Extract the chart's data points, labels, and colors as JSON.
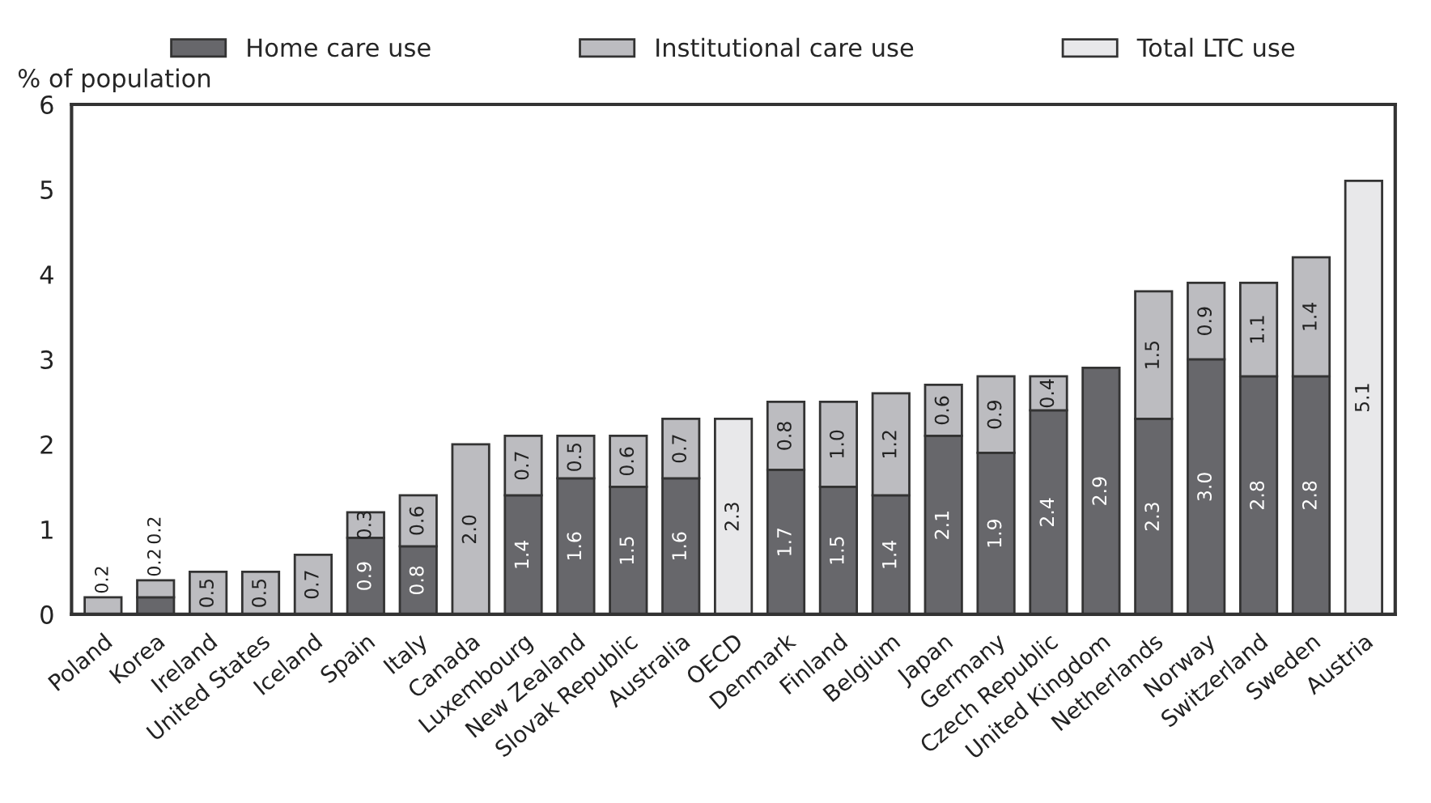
{
  "chart_data": {
    "type": "bar",
    "stacked": true,
    "ylabel": "% of population",
    "categories": [
      "Poland",
      "Korea",
      "Ireland",
      "United States",
      "Iceland",
      "Spain",
      "Italy",
      "Canada",
      "Luxembourg",
      "New Zealand",
      "Slovak Republic",
      "Australia",
      "OECD",
      "Denmark",
      "Finland",
      "Belgium",
      "Japan",
      "Germany",
      "Czech Republic",
      "United Kingdom",
      "Netherlands",
      "Norway",
      "Switzerland",
      "Sweden",
      "Austria"
    ],
    "series": [
      {
        "name": "Home care use",
        "color": "#67676b",
        "values": [
          null,
          0.2,
          null,
          null,
          null,
          0.9,
          0.8,
          null,
          1.4,
          1.6,
          1.5,
          1.6,
          null,
          1.7,
          1.5,
          1.4,
          2.1,
          1.9,
          2.4,
          2.9,
          2.3,
          3.0,
          2.8,
          2.8,
          null
        ],
        "value_labels": [
          null,
          "0.2",
          null,
          null,
          null,
          "0.9",
          "0.8",
          null,
          "1.4",
          "1.6",
          "1.5",
          "1.6",
          null,
          "1.7",
          "1.5",
          "1.4",
          "2.1",
          "1.9",
          "2.4",
          "2.9",
          "2.3",
          "3.0",
          "2.8",
          "2.8",
          null
        ]
      },
      {
        "name": "Institutional care use",
        "color": "#bcbcc0",
        "values": [
          0.2,
          0.2,
          0.5,
          0.5,
          0.7,
          0.3,
          0.6,
          2.0,
          0.7,
          0.5,
          0.6,
          0.7,
          null,
          0.8,
          1.0,
          1.2,
          0.6,
          0.9,
          0.4,
          null,
          1.5,
          0.9,
          1.1,
          1.4,
          null
        ],
        "value_labels": [
          "0.2",
          "0.2",
          "0.5",
          "0.5",
          "0.7",
          "0.3",
          "0.6",
          "2.0",
          "0.7",
          "0.5",
          "0.6",
          "0.7",
          null,
          "0.8",
          "1.0",
          "1.2",
          "0.6",
          "0.9",
          "0.4",
          null,
          "1.5",
          "0.9",
          "1.1",
          "1.4",
          null
        ]
      },
      {
        "name": "Total LTC use",
        "color": "#e8e8ea",
        "values": [
          null,
          null,
          null,
          null,
          null,
          null,
          null,
          null,
          null,
          null,
          null,
          null,
          2.3,
          null,
          null,
          null,
          null,
          null,
          null,
          null,
          null,
          null,
          null,
          null,
          5.1
        ],
        "value_labels": [
          null,
          null,
          null,
          null,
          null,
          null,
          null,
          null,
          null,
          null,
          null,
          null,
          "2.3",
          null,
          null,
          null,
          null,
          null,
          null,
          null,
          null,
          null,
          null,
          null,
          "5.1"
        ]
      }
    ],
    "ylim": [
      0,
      6
    ],
    "yticks": [
      0,
      1,
      2,
      3,
      4,
      5,
      6
    ],
    "grid": false,
    "legend": "top"
  }
}
